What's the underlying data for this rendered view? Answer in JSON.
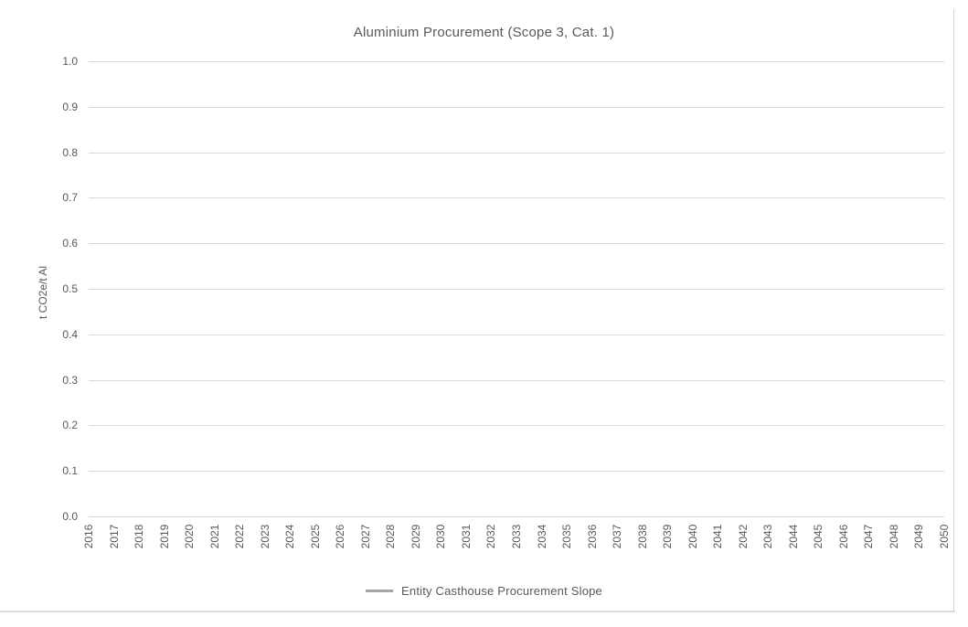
{
  "chart_data": {
    "type": "line",
    "title": "Aluminium Procurement (Scope 3, Cat. 1)",
    "xlabel": "",
    "ylabel": "t CO2e/t Al",
    "categories": [
      "2016",
      "2017",
      "2018",
      "2019",
      "2020",
      "2021",
      "2022",
      "2023",
      "2024",
      "2025",
      "2026",
      "2027",
      "2028",
      "2029",
      "2030",
      "2031",
      "2032",
      "2033",
      "2034",
      "2035",
      "2036",
      "2037",
      "2038",
      "2039",
      "2040",
      "2041",
      "2042",
      "2043",
      "2044",
      "2045",
      "2046",
      "2047",
      "2048",
      "2049",
      "2050"
    ],
    "ylim": [
      0.0,
      1.0
    ],
    "ytick_labels": [
      "0.0",
      "0.1",
      "0.2",
      "0.3",
      "0.4",
      "0.5",
      "0.6",
      "0.7",
      "0.8",
      "0.9",
      "1.0"
    ],
    "grid": "horizontal",
    "legend_position": "bottom",
    "series": [
      {
        "name": "Entity Casthouse Procurement Slope",
        "color": "#a6a6a6",
        "values": []
      }
    ]
  },
  "colors": {
    "text": "#595959",
    "gridline": "#d9d9d9",
    "frame": "#d4d4d4",
    "legend_line": "#a6a6a6"
  }
}
